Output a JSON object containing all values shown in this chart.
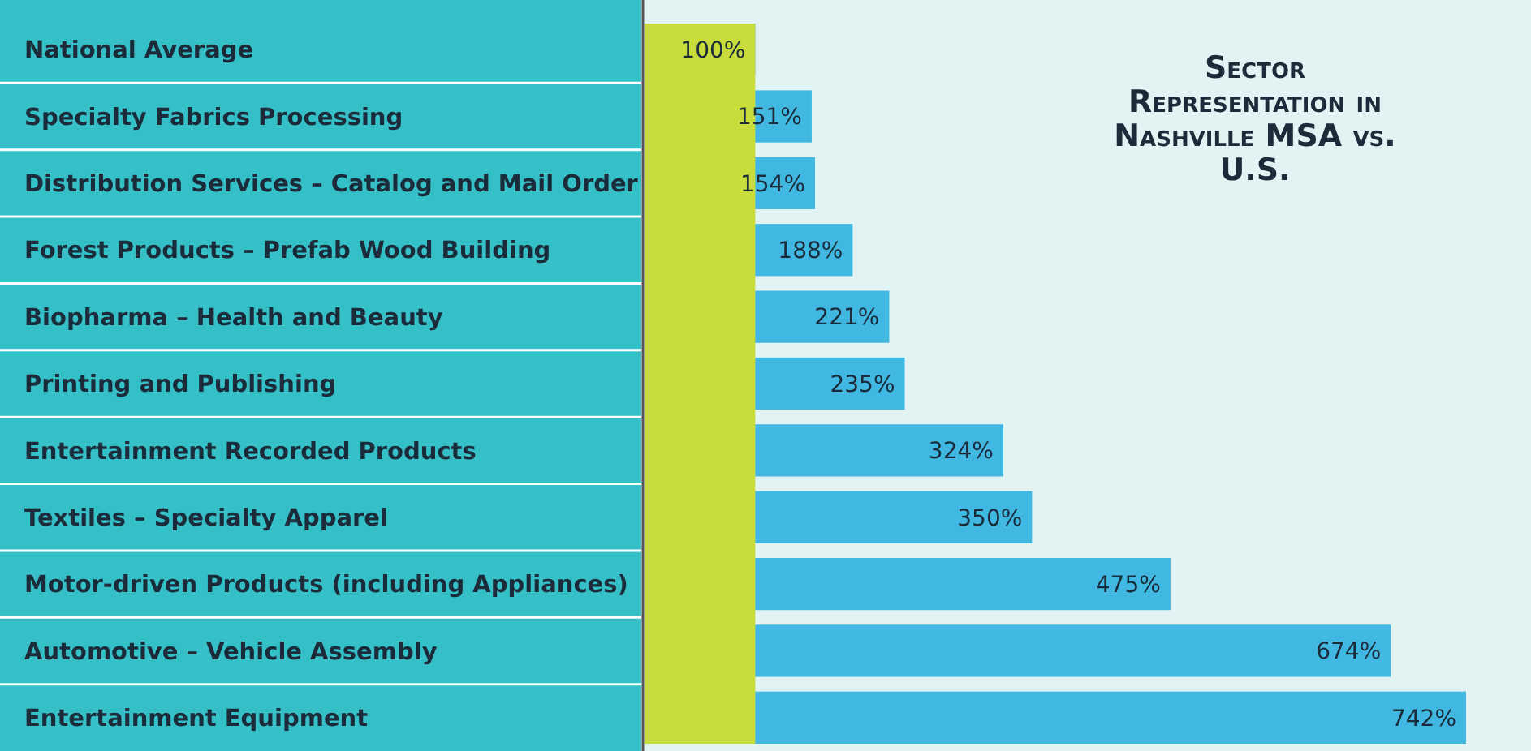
{
  "chart_data": {
    "type": "bar",
    "orientation": "horizontal",
    "title": "Sector Representation in Nashville MSA vs. U.S.",
    "categories": [
      "National Average",
      "Specialty Fabrics Processing",
      "Distribution Services – Catalog and Mail Order",
      "Forest Products – Prefab Wood Building",
      "Biopharma – Health and Beauty",
      "Printing and Publishing",
      "Entertainment Recorded Products",
      "Textiles – Specialty Apparel",
      "Motor-driven Products (including Appliances)",
      "Automotive – Vehicle Assembly",
      "Entertainment Equipment"
    ],
    "series": [
      {
        "color": "#40b8e2",
        "values": [
          100,
          151,
          154,
          188,
          221,
          235,
          324,
          350,
          475,
          674,
          742
        ],
        "value_labels": [
          "100%",
          "151%",
          "154%",
          "188%",
          "221%",
          "235%",
          "324%",
          "350%",
          "475%",
          "674%",
          "742%"
        ]
      }
    ],
    "bands": [
      {
        "axis": "x",
        "from": 0,
        "to": 100,
        "color": "#c8dc3c"
      }
    ],
    "grid": false
  }
}
